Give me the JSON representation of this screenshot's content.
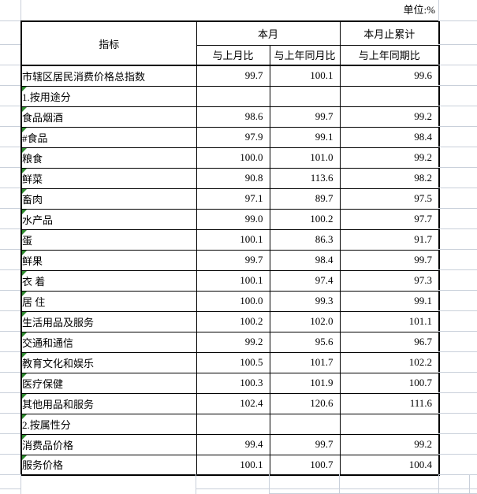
{
  "unit_label": "单位:%",
  "table": {
    "header": {
      "indicator": "指标",
      "this_month": "本月",
      "cumulative": "本月止累计",
      "vs_last_month": "与上月比",
      "vs_same_month_last_year": "与上年同月比",
      "vs_same_period_last_year": "与上年同期比"
    },
    "rows": [
      {
        "label": "市辖区居民消费价格总指数",
        "indent": 0,
        "bold": true,
        "flag": false,
        "values": [
          "99.7",
          "100.1",
          "99.6"
        ]
      },
      {
        "label": "1.按用途分",
        "indent": 1,
        "bold": true,
        "flag": true,
        "values": [
          "",
          "",
          ""
        ]
      },
      {
        "label": "食品烟酒",
        "indent": 2,
        "bold": false,
        "flag": true,
        "values": [
          "98.6",
          "99.7",
          "99.2"
        ]
      },
      {
        "label": "#食品",
        "indent": 3,
        "bold": false,
        "flag": true,
        "values": [
          "97.9",
          "99.1",
          "98.4"
        ]
      },
      {
        "label": "粮食",
        "indent": 3,
        "bold": false,
        "flag": true,
        "values": [
          "100.0",
          "101.0",
          "99.2"
        ]
      },
      {
        "label": "鲜菜",
        "indent": 3,
        "bold": false,
        "flag": true,
        "values": [
          "90.8",
          "113.6",
          "98.2"
        ]
      },
      {
        "label": "畜肉",
        "indent": 3,
        "bold": false,
        "flag": true,
        "values": [
          "97.1",
          "89.7",
          "97.5"
        ]
      },
      {
        "label": "水产品",
        "indent": 3,
        "bold": false,
        "flag": true,
        "values": [
          "99.0",
          "100.2",
          "97.7"
        ]
      },
      {
        "label": "蛋",
        "indent": 3,
        "bold": false,
        "flag": true,
        "values": [
          "100.1",
          "86.3",
          "91.7"
        ]
      },
      {
        "label": "鲜果",
        "indent": 3,
        "bold": false,
        "flag": true,
        "values": [
          "99.7",
          "98.4",
          "99.7"
        ]
      },
      {
        "label": "衣 着",
        "indent": 2,
        "bold": false,
        "flag": true,
        "values": [
          "100.1",
          "97.4",
          "97.3"
        ]
      },
      {
        "label": "居 住",
        "indent": 2,
        "bold": false,
        "flag": true,
        "values": [
          "100.0",
          "99.3",
          "99.1"
        ]
      },
      {
        "label": "生活用品及服务",
        "indent": 2,
        "bold": false,
        "flag": true,
        "values": [
          "100.2",
          "102.0",
          "101.1"
        ]
      },
      {
        "label": "交通和通信",
        "indent": 2,
        "bold": false,
        "flag": true,
        "values": [
          "99.2",
          "95.6",
          "96.7"
        ]
      },
      {
        "label": "教育文化和娱乐",
        "indent": 2,
        "bold": false,
        "flag": true,
        "values": [
          "100.5",
          "101.7",
          "102.2"
        ]
      },
      {
        "label": "医疗保健",
        "indent": 2,
        "bold": false,
        "flag": true,
        "values": [
          "100.3",
          "101.9",
          "100.7"
        ]
      },
      {
        "label": "其他用品和服务",
        "indent": 2,
        "bold": false,
        "flag": true,
        "values": [
          "102.4",
          "120.6",
          "111.6"
        ]
      },
      {
        "label": "2.按属性分",
        "indent": 1,
        "bold": true,
        "flag": true,
        "values": [
          "",
          "",
          ""
        ]
      },
      {
        "label": "消费品价格",
        "indent": 2,
        "bold": false,
        "flag": true,
        "values": [
          "99.4",
          "99.7",
          "99.2"
        ]
      },
      {
        "label": "服务价格",
        "indent": 2,
        "bold": false,
        "flag": true,
        "values": [
          "100.1",
          "100.7",
          "100.4"
        ]
      }
    ]
  },
  "colors": {
    "background": "#ffffff",
    "border": "#000000",
    "gridline": "#c9d0da",
    "flag_green": "#2e8b2e"
  }
}
